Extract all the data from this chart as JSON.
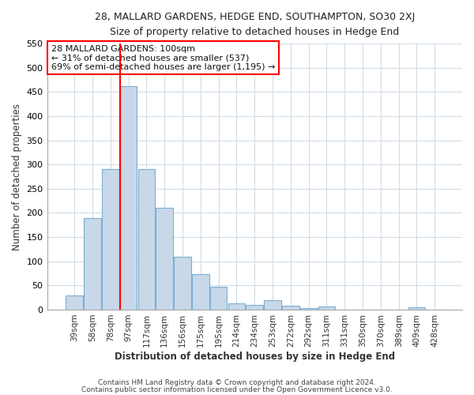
{
  "title": "28, MALLARD GARDENS, HEDGE END, SOUTHAMPTON, SO30 2XJ",
  "subtitle": "Size of property relative to detached houses in Hedge End",
  "xlabel": "Distribution of detached houses by size in Hedge End",
  "ylabel": "Number of detached properties",
  "bar_color": "#c8d8e8",
  "bar_edge_color": "#7bafd4",
  "bg_color": "#ffffff",
  "fig_color": "#ffffff",
  "grid_color": "#d0dce8",
  "categories": [
    "39sqm",
    "58sqm",
    "78sqm",
    "97sqm",
    "117sqm",
    "136sqm",
    "156sqm",
    "175sqm",
    "195sqm",
    "214sqm",
    "234sqm",
    "253sqm",
    "272sqm",
    "292sqm",
    "311sqm",
    "331sqm",
    "350sqm",
    "370sqm",
    "389sqm",
    "409sqm",
    "428sqm"
  ],
  "values": [
    30,
    190,
    290,
    462,
    290,
    210,
    110,
    73,
    47,
    13,
    10,
    20,
    8,
    3,
    6,
    0,
    0,
    0,
    0,
    5,
    0
  ],
  "red_line_index": 3,
  "ylim": [
    0,
    550
  ],
  "yticks": [
    0,
    50,
    100,
    150,
    200,
    250,
    300,
    350,
    400,
    450,
    500,
    550
  ],
  "annotation_line1": "28 MALLARD GARDENS: 100sqm",
  "annotation_line2": "← 31% of detached houses are smaller (537)",
  "annotation_line3": "69% of semi-detached houses are larger (1,195) →",
  "footer1": "Contains HM Land Registry data © Crown copyright and database right 2024.",
  "footer2": "Contains public sector information licensed under the Open Government Licence v3.0."
}
